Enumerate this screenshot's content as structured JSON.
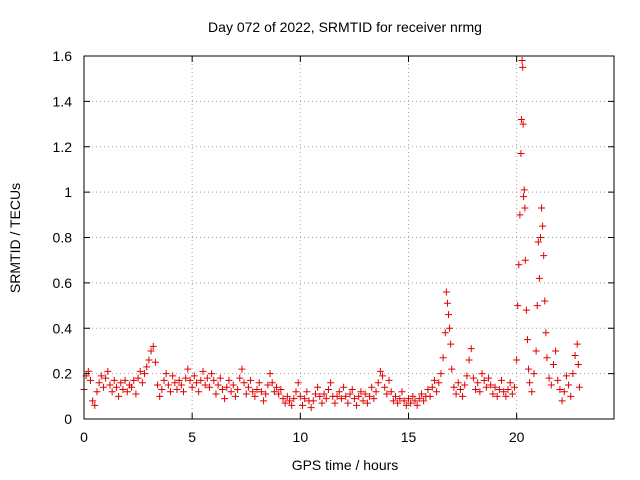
{
  "chart_data": {
    "type": "scatter",
    "title": "Day 072 of 2022, SRMTID for receiver nrmg",
    "xlabel": "GPS time / hours",
    "ylabel": "SRMTID / TECUs",
    "xlim": [
      0,
      24.5
    ],
    "ylim": [
      0,
      1.6
    ],
    "xticks": [
      0,
      5,
      10,
      15,
      20
    ],
    "xtick_labels": [
      "0",
      "5",
      "10",
      "15",
      "20"
    ],
    "yticks": [
      0,
      0.2,
      0.4,
      0.6,
      0.8,
      1.0,
      1.2,
      1.4,
      1.6
    ],
    "ytick_labels": [
      "0",
      "0.2",
      "0.4",
      "0.6",
      "0.8",
      "1",
      "1.2",
      "1.4",
      "1.6"
    ],
    "grid": true,
    "marker": "plus",
    "color": "#e00000",
    "series": [
      {
        "name": "SRMTID",
        "points": [
          [
            0.0,
            0.13
          ],
          [
            0.1,
            0.19
          ],
          [
            0.2,
            0.21
          ],
          [
            0.3,
            0.17
          ],
          [
            0.4,
            0.08
          ],
          [
            0.5,
            0.06
          ],
          [
            0.6,
            0.12
          ],
          [
            0.7,
            0.16
          ],
          [
            0.8,
            0.19
          ],
          [
            0.9,
            0.14
          ],
          [
            1.0,
            0.18
          ],
          [
            1.1,
            0.21
          ],
          [
            1.2,
            0.15
          ],
          [
            1.3,
            0.12
          ],
          [
            1.4,
            0.17
          ],
          [
            1.5,
            0.14
          ],
          [
            1.6,
            0.1
          ],
          [
            1.7,
            0.16
          ],
          [
            1.8,
            0.13
          ],
          [
            1.9,
            0.17
          ],
          [
            2.0,
            0.12
          ],
          [
            2.1,
            0.15
          ],
          [
            2.2,
            0.14
          ],
          [
            2.3,
            0.17
          ],
          [
            2.4,
            0.11
          ],
          [
            2.5,
            0.18
          ],
          [
            2.6,
            0.21
          ],
          [
            2.7,
            0.16
          ],
          [
            2.8,
            0.2
          ],
          [
            2.9,
            0.23
          ],
          [
            3.0,
            0.26
          ],
          [
            3.1,
            0.3
          ],
          [
            3.2,
            0.32
          ],
          [
            3.3,
            0.25
          ],
          [
            3.4,
            0.15
          ],
          [
            3.5,
            0.1
          ],
          [
            3.6,
            0.13
          ],
          [
            3.7,
            0.17
          ],
          [
            3.8,
            0.2
          ],
          [
            3.9,
            0.15
          ],
          [
            4.0,
            0.12
          ],
          [
            4.1,
            0.19
          ],
          [
            4.2,
            0.16
          ],
          [
            4.3,
            0.13
          ],
          [
            4.4,
            0.17
          ],
          [
            4.5,
            0.15
          ],
          [
            4.6,
            0.12
          ],
          [
            4.7,
            0.18
          ],
          [
            4.8,
            0.22
          ],
          [
            4.9,
            0.17
          ],
          [
            5.0,
            0.14
          ],
          [
            5.1,
            0.19
          ],
          [
            5.2,
            0.16
          ],
          [
            5.3,
            0.12
          ],
          [
            5.4,
            0.17
          ],
          [
            5.5,
            0.21
          ],
          [
            5.6,
            0.15
          ],
          [
            5.7,
            0.18
          ],
          [
            5.8,
            0.14
          ],
          [
            5.9,
            0.2
          ],
          [
            6.0,
            0.17
          ],
          [
            6.1,
            0.11
          ],
          [
            6.2,
            0.15
          ],
          [
            6.3,
            0.18
          ],
          [
            6.4,
            0.13
          ],
          [
            6.5,
            0.09
          ],
          [
            6.6,
            0.14
          ],
          [
            6.7,
            0.17
          ],
          [
            6.8,
            0.12
          ],
          [
            6.9,
            0.15
          ],
          [
            7.0,
            0.1
          ],
          [
            7.1,
            0.13
          ],
          [
            7.2,
            0.18
          ],
          [
            7.3,
            0.22
          ],
          [
            7.4,
            0.16
          ],
          [
            7.5,
            0.11
          ],
          [
            7.6,
            0.14
          ],
          [
            7.7,
            0.17
          ],
          [
            7.8,
            0.12
          ],
          [
            7.9,
            0.1
          ],
          [
            8.0,
            0.13
          ],
          [
            8.1,
            0.16
          ],
          [
            8.2,
            0.12
          ],
          [
            8.3,
            0.08
          ],
          [
            8.4,
            0.11
          ],
          [
            8.5,
            0.15
          ],
          [
            8.6,
            0.2
          ],
          [
            8.7,
            0.16
          ],
          [
            8.8,
            0.12
          ],
          [
            8.9,
            0.14
          ],
          [
            9.0,
            0.11
          ],
          [
            9.1,
            0.13
          ],
          [
            9.2,
            0.09
          ],
          [
            9.3,
            0.07
          ],
          [
            9.4,
            0.1
          ],
          [
            9.5,
            0.08
          ],
          [
            9.6,
            0.06
          ],
          [
            9.7,
            0.09
          ],
          [
            9.8,
            0.12
          ],
          [
            9.9,
            0.16
          ],
          [
            10.0,
            0.1
          ],
          [
            10.1,
            0.06
          ],
          [
            10.2,
            0.09
          ],
          [
            10.3,
            0.12
          ],
          [
            10.4,
            0.08
          ],
          [
            10.5,
            0.05
          ],
          [
            10.6,
            0.08
          ],
          [
            10.7,
            0.11
          ],
          [
            10.8,
            0.14
          ],
          [
            10.9,
            0.1
          ],
          [
            11.0,
            0.07
          ],
          [
            11.1,
            0.11
          ],
          [
            11.2,
            0.09
          ],
          [
            11.3,
            0.13
          ],
          [
            11.4,
            0.16
          ],
          [
            11.5,
            0.1
          ],
          [
            11.6,
            0.07
          ],
          [
            11.7,
            0.1
          ],
          [
            11.8,
            0.12
          ],
          [
            11.9,
            0.09
          ],
          [
            12.0,
            0.14
          ],
          [
            12.1,
            0.1
          ],
          [
            12.2,
            0.07
          ],
          [
            12.3,
            0.11
          ],
          [
            12.4,
            0.13
          ],
          [
            12.5,
            0.09
          ],
          [
            12.6,
            0.06
          ],
          [
            12.7,
            0.1
          ],
          [
            12.8,
            0.12
          ],
          [
            12.9,
            0.08
          ],
          [
            13.0,
            0.11
          ],
          [
            13.1,
            0.07
          ],
          [
            13.2,
            0.1
          ],
          [
            13.3,
            0.14
          ],
          [
            13.4,
            0.09
          ],
          [
            13.5,
            0.12
          ],
          [
            13.6,
            0.16
          ],
          [
            13.7,
            0.21
          ],
          [
            13.8,
            0.19
          ],
          [
            13.9,
            0.14
          ],
          [
            14.0,
            0.11
          ],
          [
            14.1,
            0.17
          ],
          [
            14.2,
            0.12
          ],
          [
            14.3,
            0.08
          ],
          [
            14.4,
            0.1
          ],
          [
            14.5,
            0.07
          ],
          [
            14.6,
            0.09
          ],
          [
            14.7,
            0.12
          ],
          [
            14.8,
            0.08
          ],
          [
            14.9,
            0.06
          ],
          [
            15.0,
            0.09
          ],
          [
            15.1,
            0.07
          ],
          [
            15.2,
            0.1
          ],
          [
            15.3,
            0.08
          ],
          [
            15.4,
            0.06
          ],
          [
            15.5,
            0.09
          ],
          [
            15.6,
            0.11
          ],
          [
            15.7,
            0.08
          ],
          [
            15.8,
            0.1
          ],
          [
            15.9,
            0.13
          ],
          [
            16.0,
            0.1
          ],
          [
            16.1,
            0.14
          ],
          [
            16.2,
            0.17
          ],
          [
            16.3,
            0.12
          ],
          [
            16.4,
            0.16
          ],
          [
            16.5,
            0.2
          ],
          [
            16.6,
            0.27
          ],
          [
            16.7,
            0.38
          ],
          [
            16.75,
            0.56
          ],
          [
            16.8,
            0.51
          ],
          [
            16.85,
            0.46
          ],
          [
            16.9,
            0.4
          ],
          [
            16.95,
            0.33
          ],
          [
            17.0,
            0.22
          ],
          [
            17.1,
            0.14
          ],
          [
            17.2,
            0.11
          ],
          [
            17.3,
            0.16
          ],
          [
            17.4,
            0.13
          ],
          [
            17.5,
            0.1
          ],
          [
            17.6,
            0.15
          ],
          [
            17.7,
            0.19
          ],
          [
            17.8,
            0.26
          ],
          [
            17.9,
            0.31
          ],
          [
            18.0,
            0.18
          ],
          [
            18.1,
            0.13
          ],
          [
            18.2,
            0.16
          ],
          [
            18.3,
            0.12
          ],
          [
            18.4,
            0.2
          ],
          [
            18.5,
            0.17
          ],
          [
            18.6,
            0.14
          ],
          [
            18.7,
            0.18
          ],
          [
            18.8,
            0.15
          ],
          [
            18.9,
            0.11
          ],
          [
            19.0,
            0.14
          ],
          [
            19.1,
            0.1
          ],
          [
            19.2,
            0.13
          ],
          [
            19.3,
            0.17
          ],
          [
            19.4,
            0.12
          ],
          [
            19.5,
            0.1
          ],
          [
            19.6,
            0.13
          ],
          [
            19.7,
            0.16
          ],
          [
            19.8,
            0.11
          ],
          [
            19.9,
            0.14
          ],
          [
            20.0,
            0.26
          ],
          [
            20.05,
            0.5
          ],
          [
            20.1,
            0.68
          ],
          [
            20.15,
            0.9
          ],
          [
            20.2,
            1.17
          ],
          [
            20.22,
            1.32
          ],
          [
            20.25,
            1.58
          ],
          [
            20.28,
            1.55
          ],
          [
            20.3,
            1.3
          ],
          [
            20.32,
            0.98
          ],
          [
            20.35,
            1.01
          ],
          [
            20.38,
            0.93
          ],
          [
            20.4,
            0.7
          ],
          [
            20.45,
            0.48
          ],
          [
            20.5,
            0.35
          ],
          [
            20.55,
            0.22
          ],
          [
            20.6,
            0.16
          ],
          [
            20.7,
            0.12
          ],
          [
            20.8,
            0.2
          ],
          [
            20.9,
            0.3
          ],
          [
            20.95,
            0.5
          ],
          [
            21.0,
            0.78
          ],
          [
            21.05,
            0.62
          ],
          [
            21.1,
            0.8
          ],
          [
            21.15,
            0.93
          ],
          [
            21.2,
            0.85
          ],
          [
            21.25,
            0.72
          ],
          [
            21.3,
            0.52
          ],
          [
            21.35,
            0.38
          ],
          [
            21.4,
            0.27
          ],
          [
            21.5,
            0.18
          ],
          [
            21.6,
            0.15
          ],
          [
            21.7,
            0.24
          ],
          [
            21.8,
            0.3
          ],
          [
            21.9,
            0.17
          ],
          [
            22.0,
            0.13
          ],
          [
            22.1,
            0.08
          ],
          [
            22.2,
            0.12
          ],
          [
            22.3,
            0.19
          ],
          [
            22.4,
            0.15
          ],
          [
            22.5,
            0.1
          ],
          [
            22.6,
            0.2
          ],
          [
            22.7,
            0.28
          ],
          [
            22.8,
            0.33
          ],
          [
            22.85,
            0.24
          ],
          [
            22.9,
            0.14
          ]
        ]
      }
    ]
  }
}
